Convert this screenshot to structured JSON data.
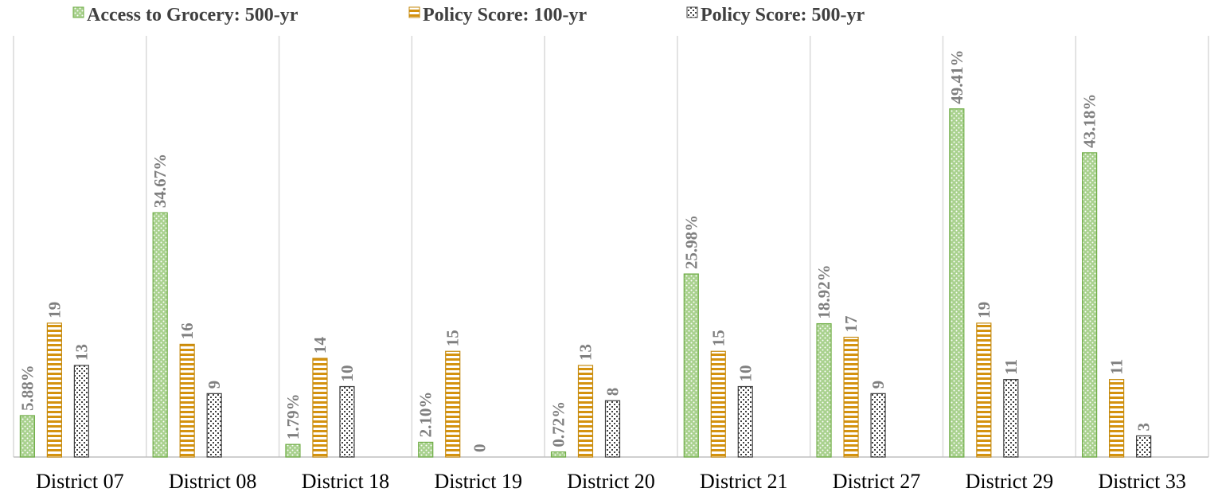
{
  "chart_data": {
    "type": "bar",
    "title": "",
    "xlabel": "",
    "ylabel": "",
    "categories": [
      "District 07",
      "District 08",
      "District 18",
      "District 19",
      "District 20",
      "District 21",
      "District 27",
      "District 29",
      "District 33"
    ],
    "series": [
      {
        "name": "Access to Grocery: 500-yr",
        "values": [
          5.88,
          34.67,
          1.79,
          2.1,
          0.72,
          25.98,
          18.92,
          49.41,
          43.18
        ],
        "labels": [
          "5.88%",
          "34.67%",
          "1.79%",
          "2.10%",
          "0.72%",
          "25.98%",
          "18.92%",
          "49.41%",
          "43.18%"
        ],
        "unit": "%",
        "color": "#a9d18e",
        "stroke": "#70ad47",
        "pattern": "dots"
      },
      {
        "name": "Policy Score: 100-yr",
        "values": [
          19,
          16,
          14,
          15,
          13,
          15,
          17,
          19,
          11
        ],
        "labels": [
          "19",
          "16",
          "14",
          "15",
          "13",
          "15",
          "17",
          "19",
          "11"
        ],
        "color": "#ffffff",
        "stroke": "#c58a0e",
        "pattern": "horizontal-stripes"
      },
      {
        "name": "Policy Score: 500-yr",
        "values": [
          13,
          9,
          10,
          0,
          8,
          10,
          9,
          11,
          3
        ],
        "labels": [
          "13",
          "9",
          "10",
          "0",
          "8",
          "10",
          "9",
          "11",
          "3"
        ],
        "color": "#ffffff",
        "stroke": "#404040",
        "pattern": "speckle"
      }
    ],
    "axis": {
      "percent_series_ylim": [
        0,
        60
      ],
      "score_series_ylim": [
        0,
        60
      ]
    },
    "grid": false,
    "category_separators": true,
    "legend_position": "top"
  }
}
